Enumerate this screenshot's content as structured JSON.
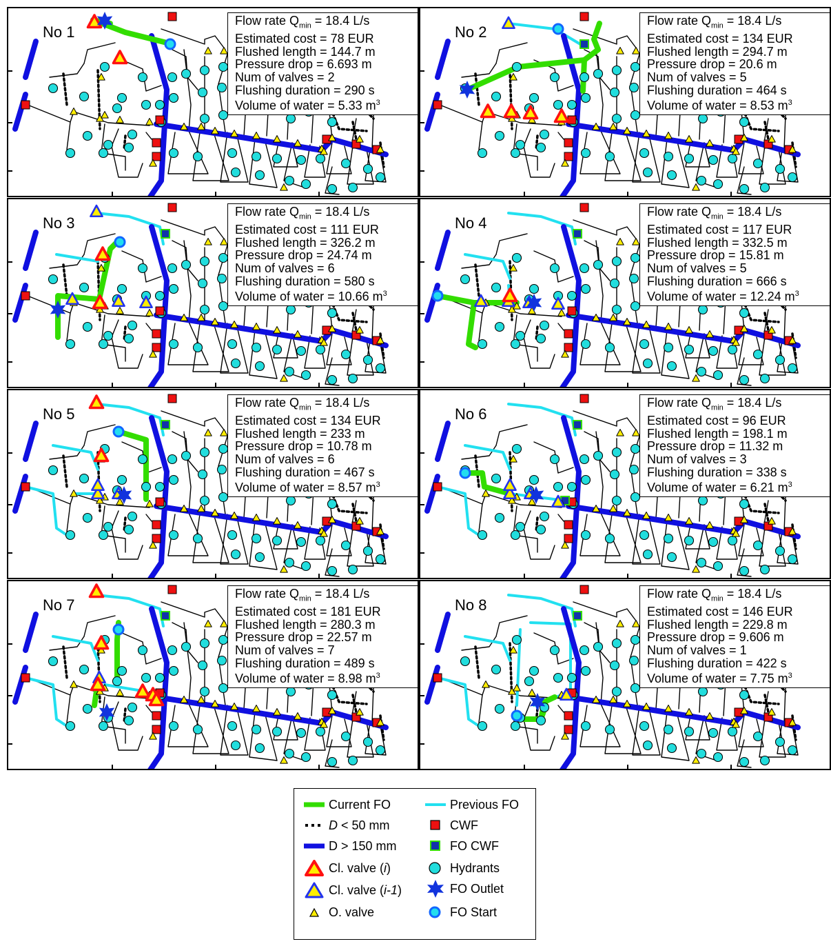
{
  "panels": [
    {
      "title": "No 1",
      "flow_rate": "18.4 L/s",
      "cost": "78 EUR",
      "length": "144.7 m",
      "pressure": "6.693 m",
      "valves": "2",
      "duration": "290 s",
      "volume": "5.33 m"
    },
    {
      "title": "No 2",
      "flow_rate": "18.4 L/s",
      "cost": "134 EUR",
      "length": "294.7 m",
      "pressure": "20.6 m",
      "valves": "5",
      "duration": "464 s",
      "volume": "8.53 m"
    },
    {
      "title": "No 3",
      "flow_rate": "18.4 L/s",
      "cost": "111 EUR",
      "length": "326.2 m",
      "pressure": "24.74 m",
      "valves": "6",
      "duration": "580 s",
      "volume": "10.66 m"
    },
    {
      "title": "No 4",
      "flow_rate": "18.4 L/s",
      "cost": "117 EUR",
      "length": "332.5 m",
      "pressure": "15.81 m",
      "valves": "5",
      "duration": "666 s",
      "volume": "12.24 m"
    },
    {
      "title": "No 5",
      "flow_rate": "18.4 L/s",
      "cost": "134 EUR",
      "length": "233 m",
      "pressure": "10.78 m",
      "valves": "6",
      "duration": "467 s",
      "volume": "8.57 m"
    },
    {
      "title": "No 6",
      "flow_rate": "18.4 L/s",
      "cost": "96 EUR",
      "length": "198.1 m",
      "pressure": "11.32 m",
      "valves": "3",
      "duration": "338 s",
      "volume": "6.21 m"
    },
    {
      "title": "No 7",
      "flow_rate": "18.4 L/s",
      "cost": "181 EUR",
      "length": "280.3 m",
      "pressure": "22.57 m",
      "valves": "7",
      "duration": "489 s",
      "volume": "8.98 m"
    },
    {
      "title": "No 8",
      "flow_rate": "18.4 L/s",
      "cost": "146 EUR",
      "length": "229.8 m",
      "pressure": "9.606 m",
      "valves": "1",
      "duration": "422 s",
      "volume": "7.75 m"
    }
  ],
  "labels": {
    "flow_rate": "Flow rate Q",
    "flow_sub": "min",
    "cost": "Estimated cost = ",
    "length": "Flushed length = ",
    "pressure": "Pressure drop = ",
    "valves": "Num of valves = ",
    "duration": "Flushing duration = ",
    "volume": "Volume of water = ",
    "volume_sup": "3"
  },
  "legend": {
    "current_fo": "Current FO",
    "previous_fo": "Previous FO",
    "d_small_italic": "D",
    "d_small": " < 50 mm",
    "cwf": "CWF",
    "d_large": "D > 150 mm",
    "fo_cwf": "FO CWF",
    "cl_valve_i_pre": "Cl. valve (",
    "cl_valve_i_var": "i",
    "cl_valve_i_post": ")",
    "hydrants": "Hydrants",
    "cl_valve_prev_pre": "Cl. valve (",
    "cl_valve_prev_var": "i-1",
    "cl_valve_prev_post": ")",
    "fo_outlet": "FO Outlet",
    "o_valve": "O. valve",
    "fo_start": "FO Start"
  },
  "colors": {
    "current_fo": "#33dd00",
    "previous_fo": "#22e0f0",
    "main_pipe": "#1010e0",
    "cwf": "#ee1111",
    "hydrant": "#22dddd",
    "closed_valve_i": "#ff1111",
    "closed_valve_prev": "#2233ee",
    "open_valve": "#ffee00",
    "outlet": "#1133dd",
    "start": "#1166ff"
  }
}
